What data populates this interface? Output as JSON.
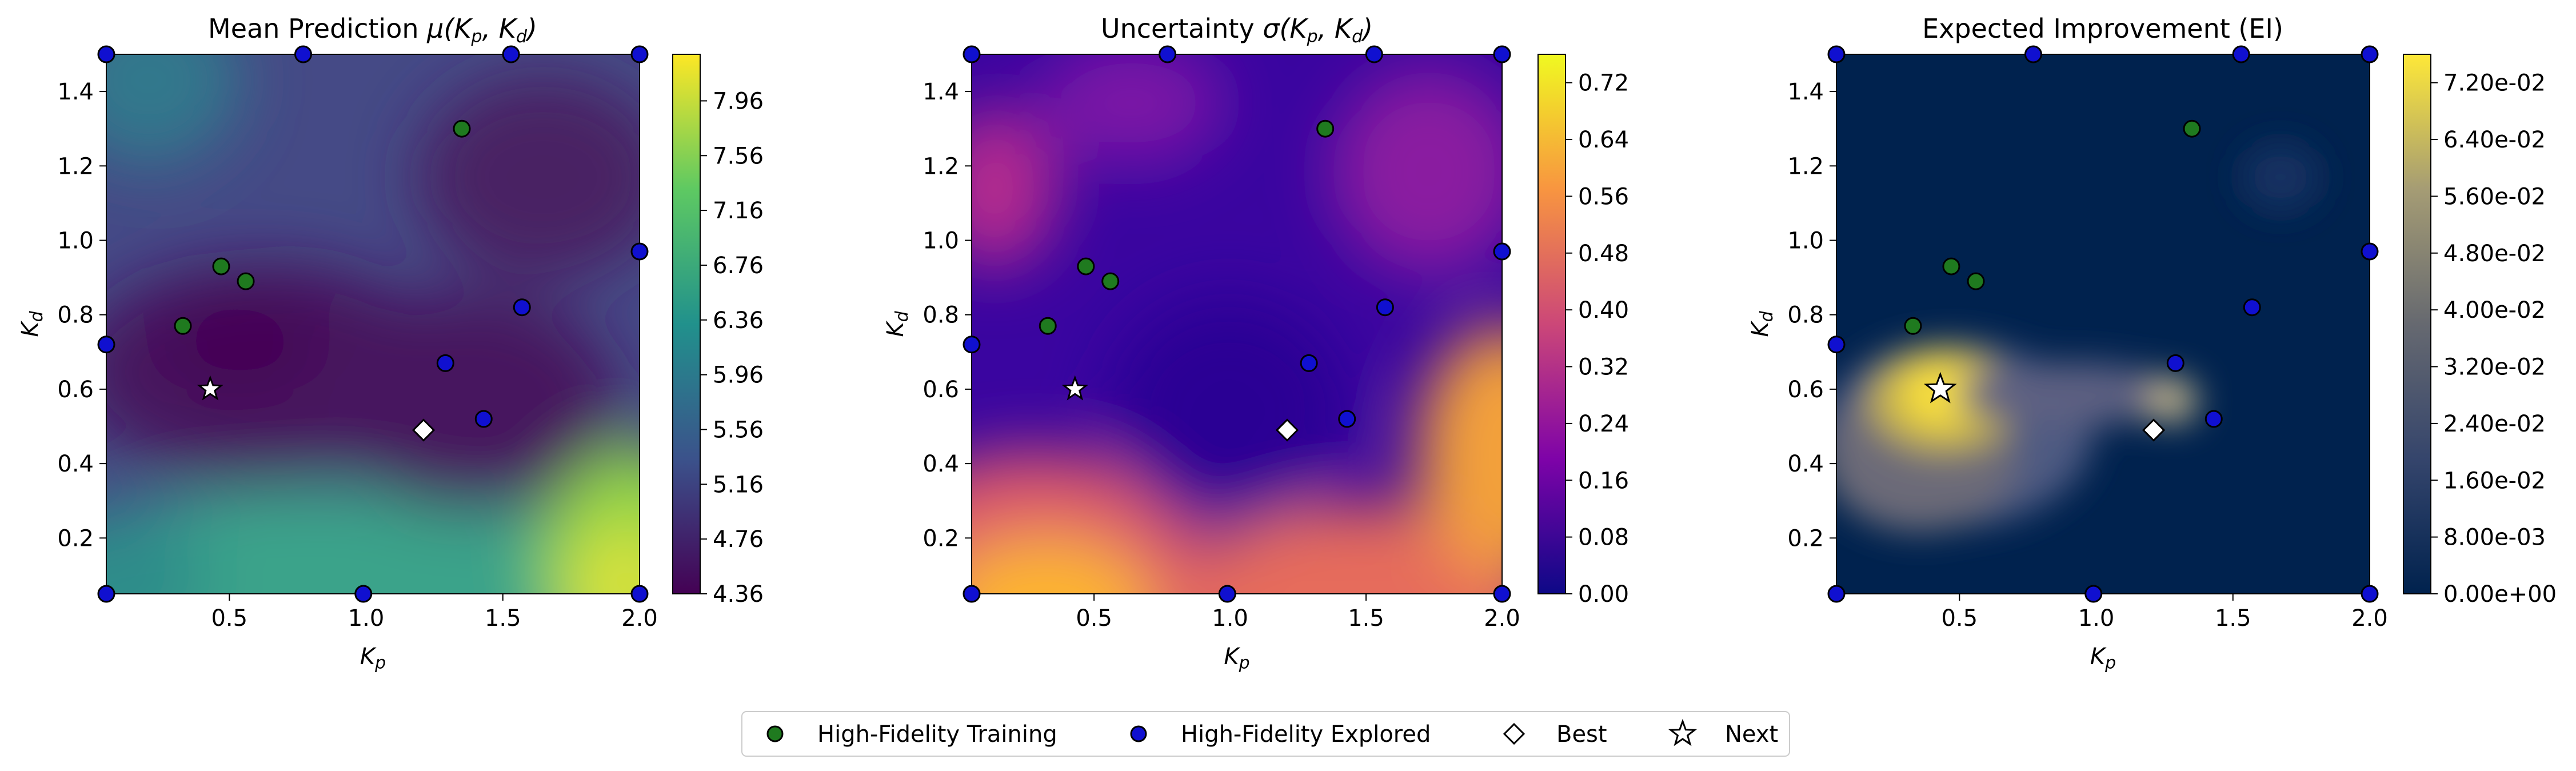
{
  "chart_data": [
    {
      "type": "heatmap",
      "title_prefix": "Mean Prediction ",
      "title_math": "μ(K_p, K_d)",
      "xlabel": "K_p",
      "ylabel": "K_d",
      "xlim": [
        0.05,
        2.0
      ],
      "ylim": [
        0.05,
        1.5
      ],
      "xticks": [
        "0.5",
        "1.0",
        "1.5",
        "2.0"
      ],
      "yticks": [
        "0.2",
        "0.4",
        "0.6",
        "0.8",
        "1.0",
        "1.2",
        "1.4"
      ],
      "colormap": "viridis",
      "colorbar_range": [
        4.36,
        8.3
      ],
      "colorbar_ticks": [
        "4.36",
        "4.76",
        "5.16",
        "5.56",
        "5.96",
        "6.36",
        "6.76",
        "7.16",
        "7.56",
        "7.96"
      ]
    },
    {
      "type": "heatmap",
      "title_prefix": "Uncertainty ",
      "title_math": "σ(K_p, K_d)",
      "xlabel": "K_p",
      "ylabel": "K_d",
      "xlim": [
        0.05,
        2.0
      ],
      "ylim": [
        0.05,
        1.5
      ],
      "xticks": [
        "0.5",
        "1.0",
        "1.5",
        "2.0"
      ],
      "yticks": [
        "0.2",
        "0.4",
        "0.6",
        "0.8",
        "1.0",
        "1.2",
        "1.4"
      ],
      "colormap": "plasma",
      "colorbar_range": [
        0.0,
        0.76
      ],
      "colorbar_ticks": [
        "0.00",
        "0.08",
        "0.16",
        "0.24",
        "0.32",
        "0.40",
        "0.48",
        "0.56",
        "0.64",
        "0.72"
      ]
    },
    {
      "type": "heatmap",
      "title_prefix": "Expected Improvement (EI)",
      "title_math": "",
      "xlabel": "K_p",
      "ylabel": "K_d",
      "xlim": [
        0.05,
        2.0
      ],
      "ylim": [
        0.05,
        1.5
      ],
      "xticks": [
        "0.5",
        "1.0",
        "1.5",
        "2.0"
      ],
      "yticks": [
        "0.2",
        "0.4",
        "0.6",
        "0.8",
        "1.0",
        "1.2",
        "1.4"
      ],
      "colormap": "cividis",
      "colorbar_range": [
        0.0,
        0.076
      ],
      "colorbar_ticks": [
        "0.00e+00",
        "8.00e-03",
        "1.60e-02",
        "2.40e-02",
        "3.20e-02",
        "4.00e-02",
        "4.80e-02",
        "5.60e-02",
        "6.40e-02",
        "7.20e-02"
      ]
    }
  ],
  "points": {
    "training": [
      [
        0.33,
        0.77
      ],
      [
        0.47,
        0.93
      ],
      [
        0.56,
        0.89
      ],
      [
        1.35,
        1.3
      ]
    ],
    "explored": [
      [
        0.05,
        0.72
      ],
      [
        0.05,
        1.5
      ],
      [
        0.77,
        1.5
      ],
      [
        1.53,
        1.5
      ],
      [
        2.0,
        1.5
      ],
      [
        2.0,
        0.97
      ],
      [
        1.57,
        0.82
      ],
      [
        1.29,
        0.67
      ],
      [
        1.43,
        0.52
      ],
      [
        0.99,
        0.05
      ],
      [
        0.05,
        0.05
      ],
      [
        2.0,
        0.05
      ]
    ],
    "best": [
      1.21,
      0.49
    ],
    "next": [
      0.43,
      0.6
    ]
  },
  "legend": {
    "items": [
      {
        "marker": "circle",
        "color": "#1f7a1f",
        "label": "High-Fidelity Training"
      },
      {
        "marker": "circle",
        "color": "#1010d0",
        "label": "High-Fidelity Explored"
      },
      {
        "marker": "diamond",
        "color": "#ffffff",
        "label": "Best"
      },
      {
        "marker": "star",
        "color": "#ffffff",
        "label": "Next"
      }
    ],
    "placement": "bottom-center"
  }
}
